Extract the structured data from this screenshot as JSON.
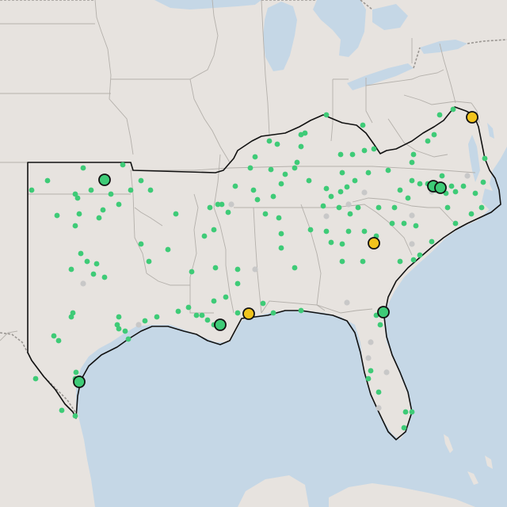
{
  "map": {
    "colors": {
      "land": "#e7e3df",
      "water": "#c5d7e6",
      "green": "#3ecb77",
      "gray": "#c8c8c8",
      "yellow": "#f2c41c",
      "outline": "#111111"
    },
    "legend": [],
    "title": ""
  }
}
